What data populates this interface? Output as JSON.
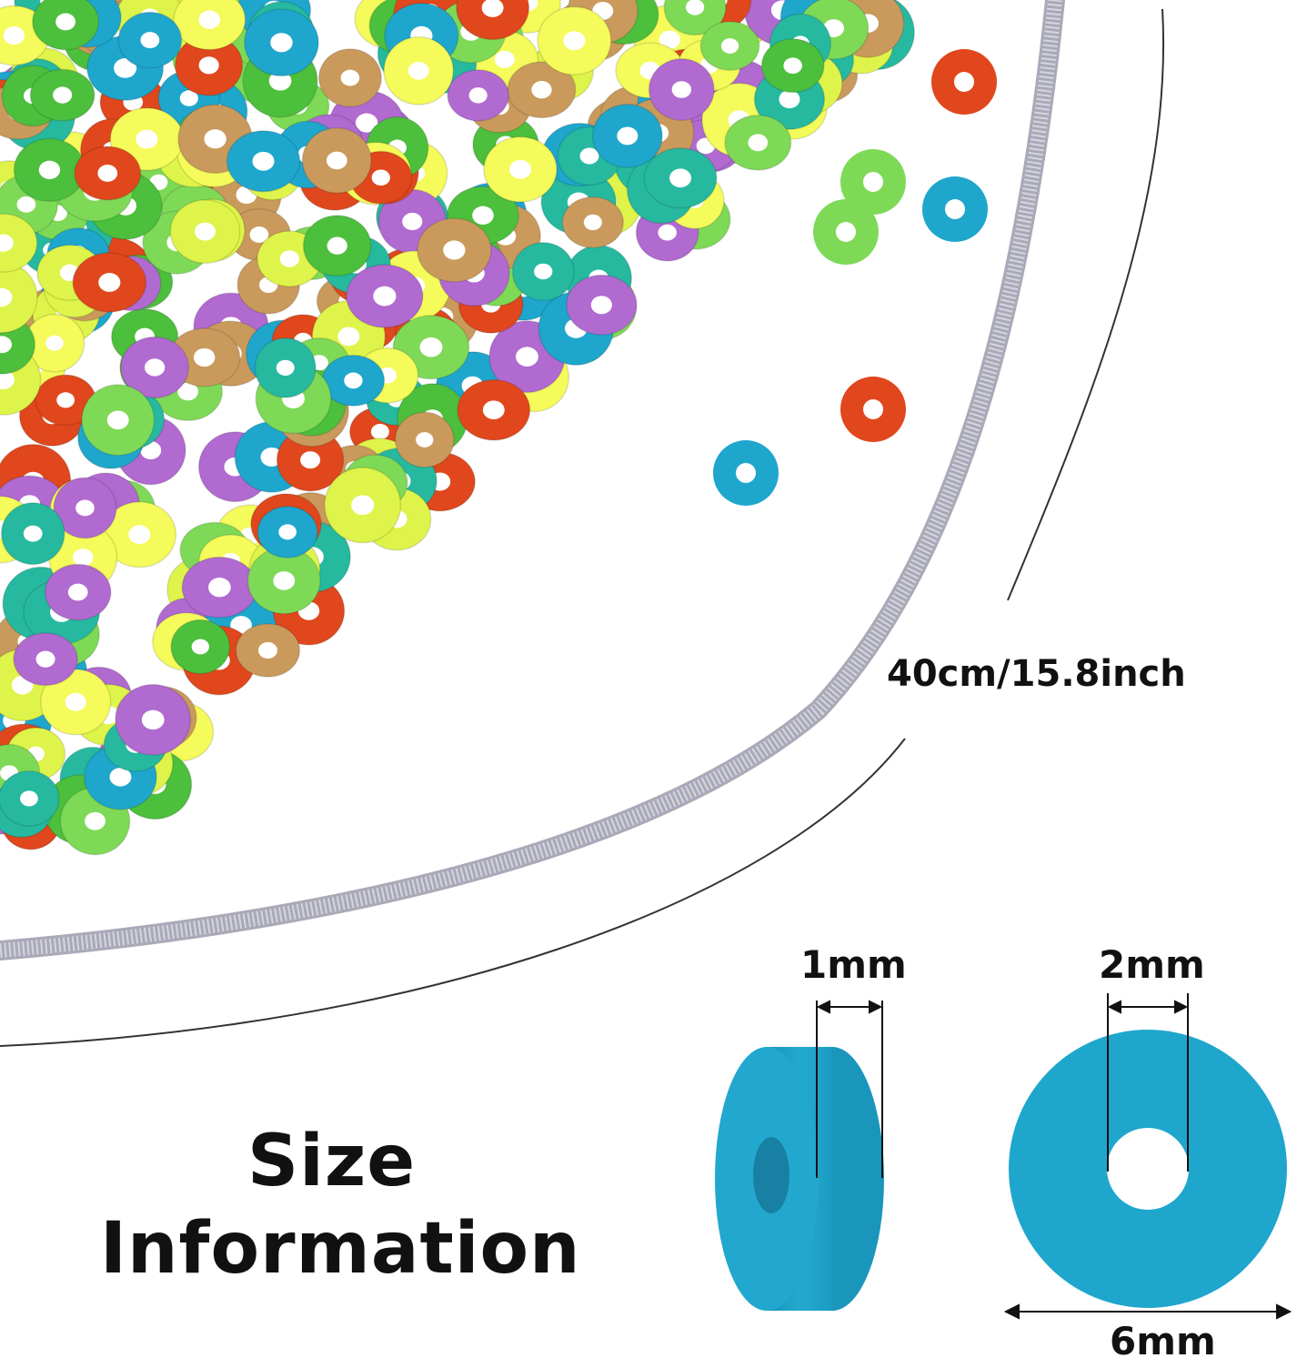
{
  "product_image": {
    "length_label": "40cm/15.8inch",
    "size_title_line1": "Size",
    "size_title_line2": "Information",
    "dimensions": {
      "thickness": "1mm",
      "hole_diameter": "2mm",
      "outer_diameter": "6mm"
    },
    "colors": {
      "bead_blue": "#1fa6cc",
      "strand_gray": "#a9a9b8",
      "text": "#111111",
      "palette": [
        "#e0471d",
        "#b06ad0",
        "#4cbf3c",
        "#7ed957",
        "#dff44a",
        "#c99a5c",
        "#1fa6cc",
        "#26b9a0",
        "#f4fb5a"
      ]
    }
  }
}
